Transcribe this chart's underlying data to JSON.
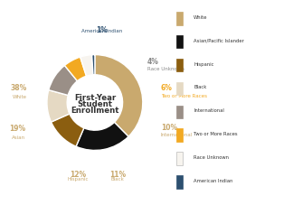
{
  "labels": [
    "White",
    "Asian/Pacific Islander",
    "Hispanic",
    "Black",
    "International",
    "Two or More Races",
    "Race Unknown",
    "American Indian"
  ],
  "values": [
    38,
    19,
    12,
    11,
    10,
    6,
    4,
    1
  ],
  "colors": [
    "#c9a96e",
    "#111111",
    "#8b5e10",
    "#e5d9c3",
    "#9a8f87",
    "#f2a922",
    "#f7f4ef",
    "#2d5070"
  ],
  "center_text": [
    "First-Year",
    "Student",
    "Enrollment"
  ],
  "legend_labels": [
    "White",
    "Asian/Pacific Islander",
    "Hispanic",
    "Black",
    "International",
    "Two or More Races",
    "Race Unknown",
    "American Indian"
  ],
  "legend_colors": [
    "#c9a96e",
    "#111111",
    "#8b5e10",
    "#e5d9c3",
    "#9a8f87",
    "#f2a922",
    "#f7f4ef",
    "#2d5070"
  ],
  "bg_color": "#ffffff",
  "outer_label_pcts": [
    "38%",
    "19%",
    "12%",
    "11%",
    "10%",
    "6%",
    "4%",
    "1%"
  ],
  "outer_label_names": [
    "White",
    "Asian",
    "Hispanic",
    "Black",
    "International",
    "Two or More Races",
    "Race Unknown",
    "American Indian"
  ],
  "outer_label_colors": [
    "#c9a96e",
    "#c9a96e",
    "#c9a96e",
    "#c9a96e",
    "#c9a96e",
    "#f2a922",
    "#9a8f87",
    "#2d5070"
  ]
}
